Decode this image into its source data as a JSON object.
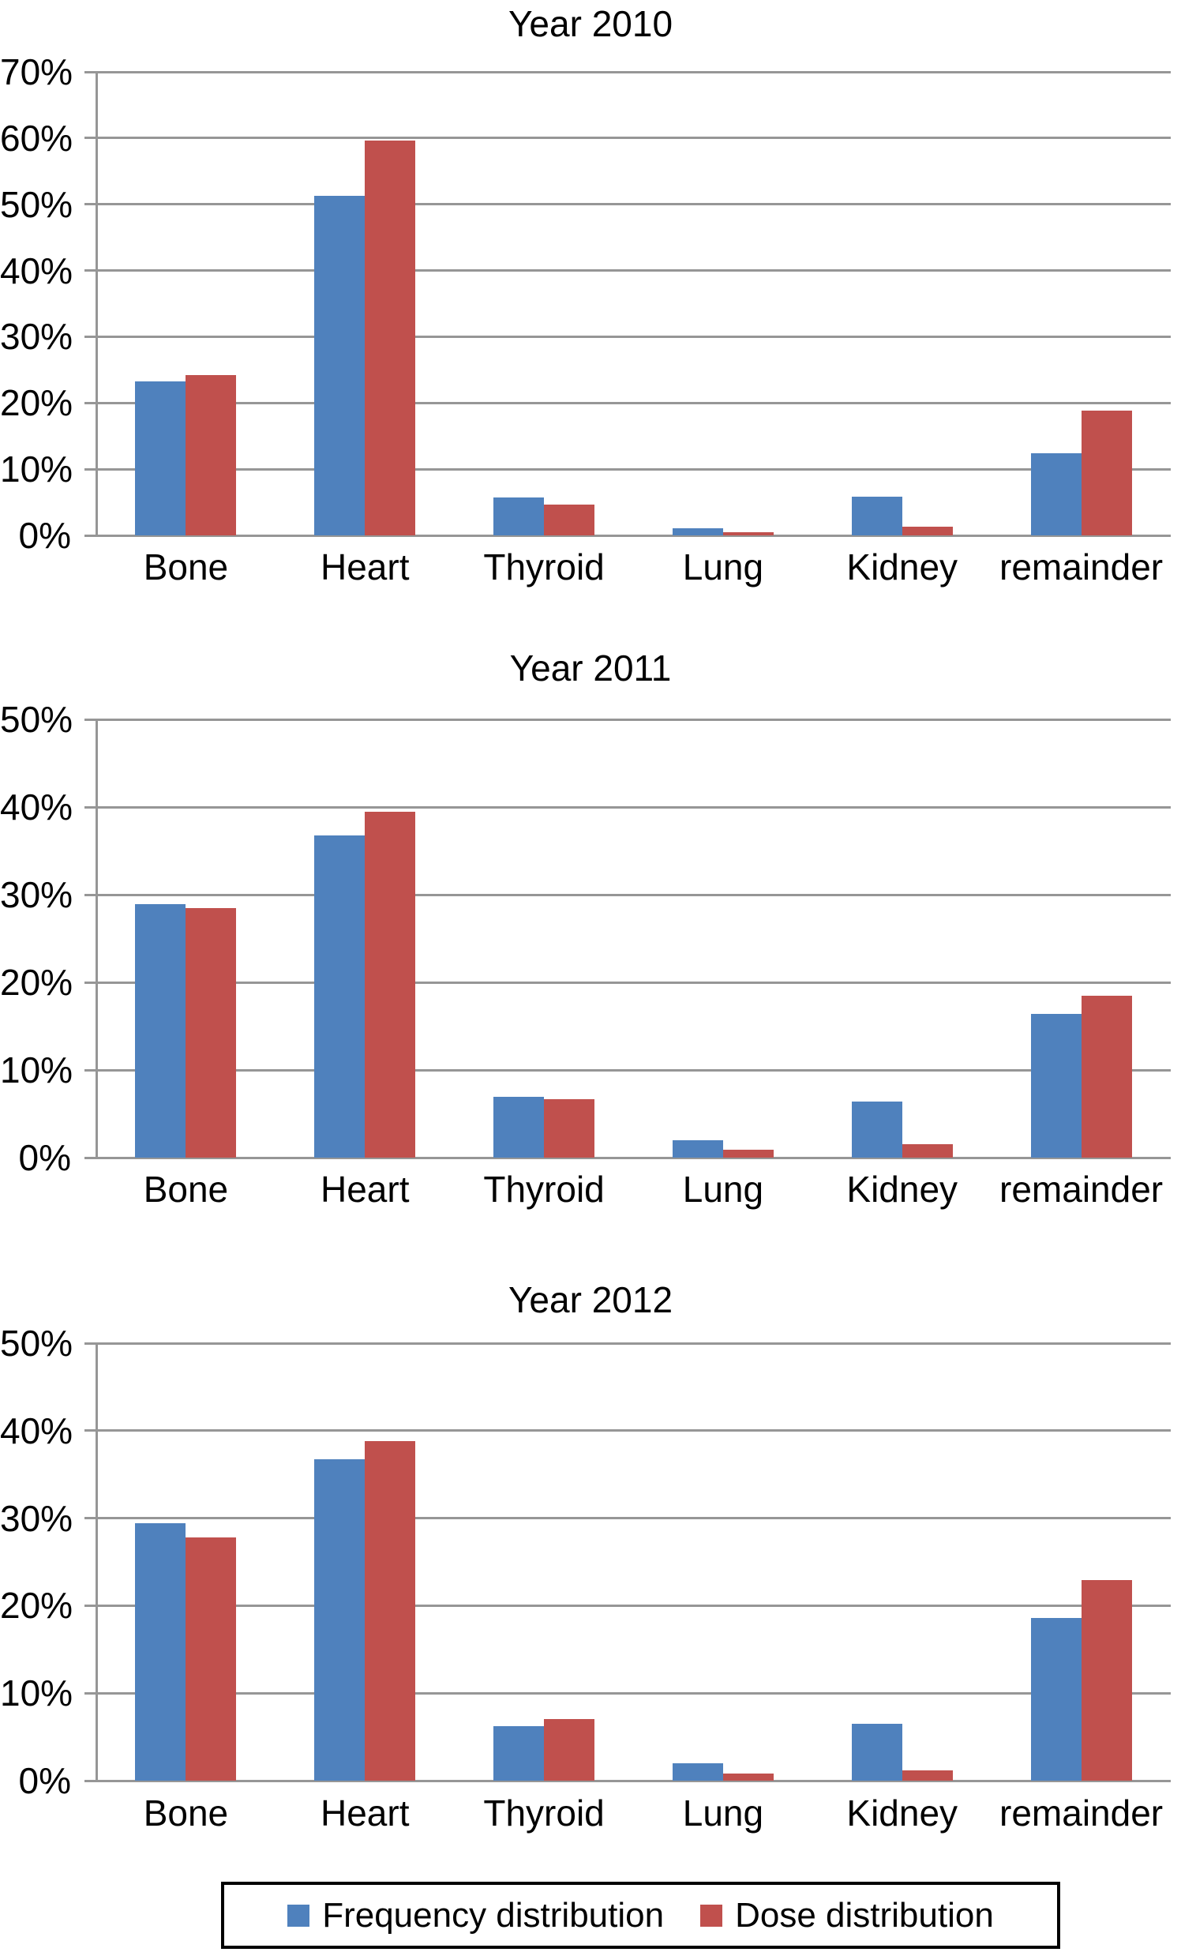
{
  "colors": {
    "frequency": "#4f81bd",
    "dose": "#c0504d",
    "gridline": "#969696",
    "text": "#000000",
    "background": "#ffffff"
  },
  "legend": {
    "items": [
      {
        "label": "Frequency distribution",
        "swatch": "blue-square",
        "color": "#4f81bd"
      },
      {
        "label": "Dose distribution",
        "swatch": "red-square",
        "color": "#c0504d"
      }
    ]
  },
  "chart_data": [
    {
      "type": "bar",
      "title": "Year 2010",
      "categories": [
        "Bone",
        "Heart",
        "Thyroid",
        "Lung",
        "Kidney",
        "remainder"
      ],
      "series": [
        {
          "name": "Frequency distribution",
          "color": "#4f81bd",
          "values": [
            23.3,
            51.3,
            5.7,
            1.1,
            5.8,
            12.4
          ]
        },
        {
          "name": "Dose distribution",
          "color": "#c0504d",
          "values": [
            24.2,
            59.6,
            4.7,
            0.5,
            1.3,
            18.8
          ]
        }
      ],
      "ylim": [
        0,
        70
      ],
      "ytick_step": 10,
      "yticks": [
        "70%",
        "60%",
        "50%",
        "40%",
        "30%",
        "20%",
        "10%",
        "0%"
      ],
      "grid": true,
      "legend_position": "shared-bottom"
    },
    {
      "type": "bar",
      "title": "Year 2011",
      "categories": [
        "Bone",
        "Heart",
        "Thyroid",
        "Lung",
        "Kidney",
        "remainder"
      ],
      "series": [
        {
          "name": "Frequency distribution",
          "color": "#4f81bd",
          "values": [
            28.9,
            36.8,
            6.9,
            2.0,
            6.4,
            16.4
          ]
        },
        {
          "name": "Dose distribution",
          "color": "#c0504d",
          "values": [
            28.5,
            39.5,
            6.7,
            0.9,
            1.5,
            18.5
          ]
        }
      ],
      "ylim": [
        0,
        50
      ],
      "ytick_step": 10,
      "yticks": [
        "50%",
        "40%",
        "30%",
        "20%",
        "10%",
        "0%"
      ],
      "grid": true,
      "legend_position": "shared-bottom"
    },
    {
      "type": "bar",
      "title": "Year 2012",
      "categories": [
        "Bone",
        "Heart",
        "Thyroid",
        "Lung",
        "Kidney",
        "remainder"
      ],
      "series": [
        {
          "name": "Frequency distribution",
          "color": "#4f81bd",
          "values": [
            29.4,
            36.7,
            6.2,
            2.0,
            6.5,
            18.6
          ]
        },
        {
          "name": "Dose distribution",
          "color": "#c0504d",
          "values": [
            27.8,
            38.8,
            7.0,
            0.8,
            1.2,
            22.9
          ]
        }
      ],
      "ylim": [
        0,
        50
      ],
      "ytick_step": 10,
      "yticks": [
        "50%",
        "40%",
        "30%",
        "20%",
        "10%",
        "0%"
      ],
      "grid": true,
      "legend_position": "shared-bottom"
    }
  ]
}
